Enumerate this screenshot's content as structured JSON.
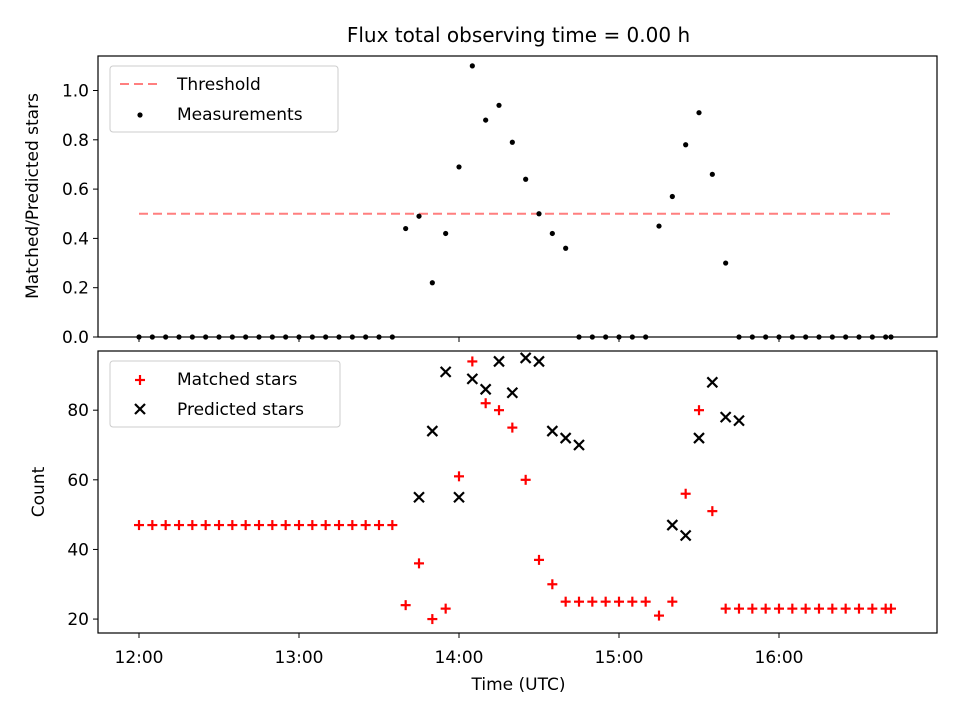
{
  "chart_data": [
    {
      "type": "scatter",
      "title": "Flux total observing time = 0.00 h",
      "xlabel": "",
      "ylabel": "Matched/Predicted stars",
      "ylim": [
        0,
        1.14
      ],
      "yticks": [
        0.0,
        0.2,
        0.4,
        0.6,
        0.8,
        1.0
      ],
      "ytick_labels": [
        "0.0",
        "0.2",
        "0.4",
        "0.6",
        "0.8",
        "1.0"
      ],
      "legend_placement": "upper left",
      "colors": {
        "threshold": "#ff7f7f",
        "measurements": "#000000"
      },
      "threshold": {
        "name": "Threshold",
        "value": 0.5,
        "x_range": [
          "12:00",
          "16:42"
        ]
      },
      "series": [
        {
          "name": "Measurements",
          "x": [
            "12:00",
            "12:05",
            "12:10",
            "12:15",
            "12:20",
            "12:25",
            "12:30",
            "12:35",
            "12:40",
            "12:45",
            "12:50",
            "12:55",
            "13:00",
            "13:05",
            "13:10",
            "13:15",
            "13:20",
            "13:25",
            "13:30",
            "13:35",
            "13:40",
            "13:45",
            "13:50",
            "13:55",
            "14:00",
            "14:05",
            "14:10",
            "14:15",
            "14:20",
            "14:25",
            "14:30",
            "14:35",
            "14:40",
            "14:45",
            "14:50",
            "14:55",
            "15:00",
            "15:05",
            "15:10",
            "15:15",
            "15:20",
            "15:25",
            "15:30",
            "15:35",
            "15:40",
            "15:45",
            "15:50",
            "15:55",
            "16:00",
            "16:05",
            "16:10",
            "16:15",
            "16:20",
            "16:25",
            "16:30",
            "16:35",
            "16:40",
            "16:42"
          ],
          "values": [
            0,
            0,
            0,
            0,
            0,
            0,
            0,
            0,
            0,
            0,
            0,
            0,
            0,
            0,
            0,
            0,
            0,
            0,
            0,
            0,
            0.44,
            0.49,
            0.22,
            0.42,
            0.69,
            1.1,
            0.88,
            0.94,
            0.79,
            0.64,
            0.5,
            0.42,
            0.36,
            0,
            0,
            0,
            0,
            0,
            0,
            0.45,
            0.57,
            0.78,
            0.91,
            0.66,
            0.3,
            0,
            0,
            0,
            0,
            0,
            0,
            0,
            0,
            0,
            0,
            0,
            0,
            0
          ]
        }
      ]
    },
    {
      "type": "scatter",
      "title": "",
      "xlabel": "Time (UTC)",
      "ylabel": "Count",
      "ylim": [
        16,
        97
      ],
      "yticks": [
        20,
        40,
        60,
        80
      ],
      "ytick_labels": [
        "20",
        "40",
        "60",
        "80"
      ],
      "xticks": [
        "12:00",
        "13:00",
        "14:00",
        "15:00",
        "16:00"
      ],
      "xtick_labels": [
        "12:00",
        "13:00",
        "14:00",
        "15:00",
        "16:00"
      ],
      "legend_placement": "upper left",
      "colors": {
        "matched": "#ff0000",
        "predicted": "#000000"
      },
      "series": [
        {
          "name": "Matched stars",
          "marker": "+",
          "x": [
            "12:00",
            "12:05",
            "12:10",
            "12:15",
            "12:20",
            "12:25",
            "12:30",
            "12:35",
            "12:40",
            "12:45",
            "12:50",
            "12:55",
            "13:00",
            "13:05",
            "13:10",
            "13:15",
            "13:20",
            "13:25",
            "13:30",
            "13:35",
            "13:40",
            "13:45",
            "13:50",
            "13:55",
            "14:00",
            "14:05",
            "14:10",
            "14:15",
            "14:20",
            "14:25",
            "14:30",
            "14:35",
            "14:40",
            "14:45",
            "14:50",
            "14:55",
            "15:00",
            "15:05",
            "15:10",
            "15:15",
            "15:20",
            "15:25",
            "15:30",
            "15:35",
            "15:40",
            "15:45",
            "15:50",
            "15:55",
            "16:00",
            "16:05",
            "16:10",
            "16:15",
            "16:20",
            "16:25",
            "16:30",
            "16:35",
            "16:40",
            "16:42"
          ],
          "values": [
            47,
            47,
            47,
            47,
            47,
            47,
            47,
            47,
            47,
            47,
            47,
            47,
            47,
            47,
            47,
            47,
            47,
            47,
            47,
            47,
            24,
            36,
            20,
            23,
            61,
            94,
            82,
            80,
            75,
            60,
            37,
            30,
            25,
            25,
            25,
            25,
            25,
            25,
            25,
            21,
            25,
            56,
            80,
            51,
            23,
            23,
            23,
            23,
            23,
            23,
            23,
            23,
            23,
            23,
            23,
            23,
            23,
            23
          ]
        },
        {
          "name": "Predicted stars",
          "marker": "x",
          "x": [
            "13:45",
            "13:50",
            "13:55",
            "14:00",
            "14:05",
            "14:10",
            "14:15",
            "14:20",
            "14:25",
            "14:30",
            "14:35",
            "14:40",
            "14:45",
            "15:20",
            "15:25",
            "15:30",
            "15:35",
            "15:40",
            "15:45"
          ],
          "values": [
            55,
            74,
            91,
            55,
            89,
            86,
            94,
            85,
            95,
            94,
            74,
            72,
            70,
            47,
            44,
            72,
            88,
            78,
            77
          ]
        }
      ]
    }
  ]
}
